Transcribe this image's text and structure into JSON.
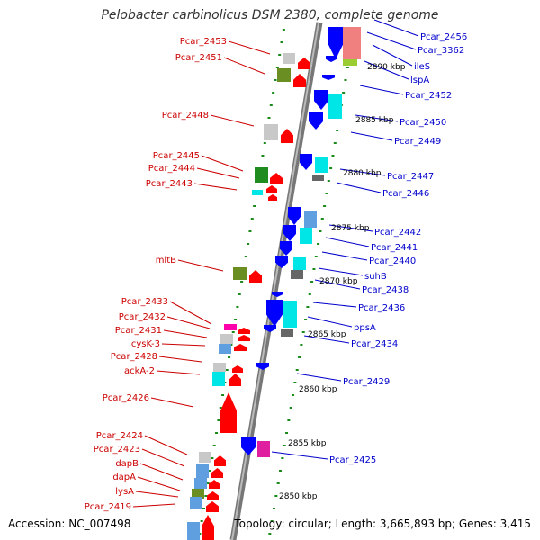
{
  "title": "Pelobacter carbinolicus DSM 2380, complete genome",
  "footer": {
    "accession": "Accession: NC_007498",
    "summary": "Topology: circular; Length: 3,665,893 bp; Genes: 3,415"
  },
  "colors": {
    "forward_label": "#cc0000",
    "reverse_label": "#0000cc",
    "strand_dots": "#1a8a1a",
    "backbone": "#888888"
  },
  "scale_ticks": [
    "2890 kbp",
    "2885 kbp",
    "2880 kbp",
    "2875 kbp",
    "2870 kbp",
    "2865 kbp",
    "2860 kbp",
    "2855 kbp",
    "2850 kbp"
  ],
  "forward_genes": [
    "Pcar_2453",
    "Pcar_2451",
    "Pcar_2448",
    "Pcar_2445",
    "Pcar_2444",
    "Pcar_2443",
    "mltB",
    "Pcar_2433",
    "Pcar_2432",
    "Pcar_2431",
    "cysK-3",
    "Pcar_2428",
    "ackA-2",
    "Pcar_2426",
    "Pcar_2424",
    "Pcar_2423",
    "dapB",
    "dapA",
    "lysA",
    "Pcar_2419"
  ],
  "reverse_genes": [
    "Pcar_2456",
    "Pcar_3362",
    "ileS",
    "lspA",
    "Pcar_2452",
    "Pcar_2450",
    "Pcar_2449",
    "Pcar_2447",
    "Pcar_2446",
    "Pcar_2442",
    "Pcar_2441",
    "Pcar_2440",
    "suhB",
    "Pcar_2438",
    "Pcar_2436",
    "ppsA",
    "Pcar_2434",
    "Pcar_2429",
    "Pcar_2425"
  ]
}
